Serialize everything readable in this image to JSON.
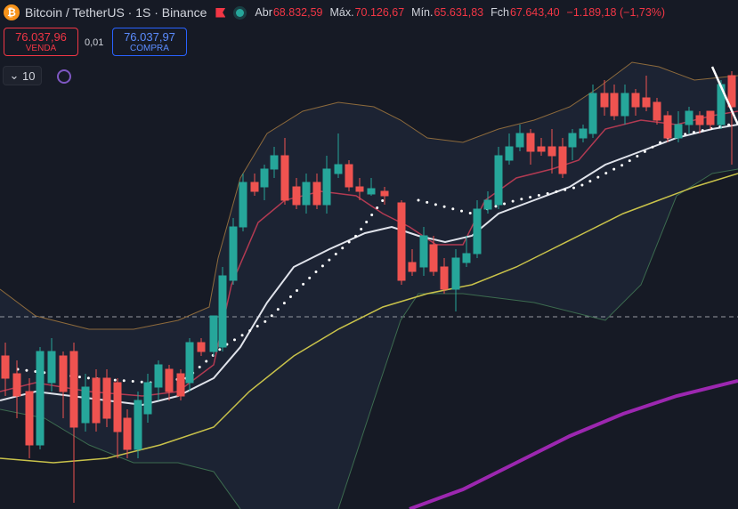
{
  "header": {
    "symbol": "Bitcoin / TetherUS · 1S · Binance",
    "ohlc": [
      {
        "label": "Abr",
        "value": "68.832,59"
      },
      {
        "label": "Máx.",
        "value": "70.126,67"
      },
      {
        "label": "Mín.",
        "value": "65.631,83"
      },
      {
        "label": "Fch",
        "value": "67.643,40"
      }
    ],
    "change": "−1.189,18 (−1,73%)"
  },
  "trade": {
    "sell": {
      "price": "76.037,96",
      "label": "VENDA"
    },
    "spread": "0,01",
    "buy": {
      "price": "76.037,97",
      "label": "COMPRA"
    }
  },
  "indicators": {
    "count": "10"
  }
}
